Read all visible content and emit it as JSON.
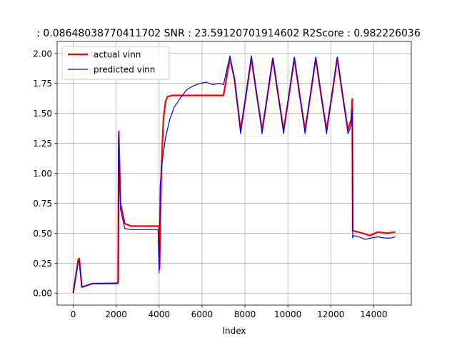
{
  "chart_data": {
    "type": "line",
    "title": ": 0.08648038770411702  SNR : 23.59120701914602 R2Score : 0.982226036",
    "xlabel": "Index",
    "ylabel": "",
    "xlim": [
      -750,
      15750
    ],
    "ylim": [
      -0.1,
      2.1
    ],
    "xticks": [
      0,
      2000,
      4000,
      6000,
      8000,
      10000,
      12000,
      14000
    ],
    "yticks": [
      0.0,
      0.25,
      0.5,
      0.75,
      1.0,
      1.25,
      1.5,
      1.75,
      2.0
    ],
    "xtick_labels": [
      "0",
      "2000",
      "4000",
      "6000",
      "8000",
      "10000",
      "12000",
      "14000"
    ],
    "ytick_labels": [
      "0.00",
      "0.25",
      "0.50",
      "0.75",
      "1.00",
      "1.25",
      "1.50",
      "1.75",
      "2.00"
    ],
    "grid": true,
    "legend_position": "top-left",
    "series": [
      {
        "name": "actual vinn",
        "color": "#ff0000",
        "x": [
          0,
          230,
          280,
          400,
          900,
          2000,
          2090,
          2120,
          2200,
          2400,
          2700,
          3000,
          4000,
          4020,
          4100,
          4200,
          4300,
          4400,
          4600,
          7000,
          7300,
          7500,
          7800,
          8050,
          8300,
          8550,
          8800,
          9050,
          9300,
          9550,
          9800,
          10050,
          10300,
          10550,
          10800,
          11050,
          11300,
          11550,
          11800,
          12050,
          12300,
          12550,
          12800,
          12950,
          13000,
          13020,
          13050,
          13500,
          13800,
          14200,
          14600,
          15000
        ],
        "y": [
          0.0,
          0.28,
          0.29,
          0.05,
          0.08,
          0.08,
          0.09,
          1.35,
          0.75,
          0.58,
          0.56,
          0.56,
          0.56,
          0.2,
          1.0,
          1.45,
          1.6,
          1.64,
          1.65,
          1.65,
          1.96,
          1.8,
          1.36,
          1.65,
          1.96,
          1.65,
          1.36,
          1.65,
          1.96,
          1.65,
          1.36,
          1.65,
          1.96,
          1.65,
          1.36,
          1.65,
          1.96,
          1.65,
          1.36,
          1.65,
          1.96,
          1.65,
          1.36,
          1.45,
          1.62,
          0.52,
          0.52,
          0.5,
          0.48,
          0.51,
          0.5,
          0.51
        ]
      },
      {
        "name": "predicted vinn",
        "color": "#0000ff",
        "x": [
          0,
          230,
          280,
          400,
          900,
          2000,
          2090,
          2110,
          2200,
          2400,
          2700,
          3000,
          3950,
          4000,
          4050,
          4150,
          4300,
          4500,
          4700,
          5000,
          5300,
          5600,
          5900,
          6200,
          6500,
          6800,
          7000,
          7300,
          7550,
          7800,
          8050,
          8300,
          8550,
          8800,
          9050,
          9300,
          9550,
          9800,
          10050,
          10300,
          10550,
          10800,
          11050,
          11300,
          11550,
          11800,
          12050,
          12300,
          12550,
          12800,
          12950,
          13000,
          13020,
          13050,
          13300,
          13600,
          13900,
          14200,
          14500,
          14800,
          15000
        ],
        "y": [
          0.0,
          0.25,
          0.27,
          0.05,
          0.08,
          0.085,
          0.08,
          1.3,
          0.7,
          0.54,
          0.53,
          0.53,
          0.53,
          0.17,
          0.9,
          1.1,
          1.3,
          1.45,
          1.55,
          1.63,
          1.7,
          1.73,
          1.75,
          1.76,
          1.74,
          1.75,
          1.74,
          1.98,
          1.75,
          1.33,
          1.66,
          1.98,
          1.66,
          1.33,
          1.66,
          1.96,
          1.66,
          1.33,
          1.66,
          1.97,
          1.66,
          1.33,
          1.66,
          1.97,
          1.66,
          1.33,
          1.66,
          1.97,
          1.66,
          1.33,
          1.4,
          1.54,
          0.46,
          0.48,
          0.47,
          0.45,
          0.46,
          0.47,
          0.46,
          0.46,
          0.47
        ]
      }
    ]
  }
}
